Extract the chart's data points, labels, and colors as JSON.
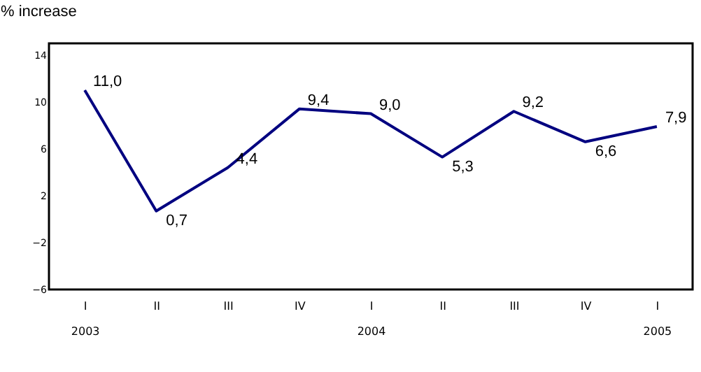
{
  "chart_data": {
    "type": "line",
    "ylabel": "% increase",
    "categories": [
      "I\n2003",
      "II",
      "III",
      "IV",
      "I\n2004",
      "II",
      "III",
      "IV",
      "I\n2005"
    ],
    "series": [
      {
        "color": "#000080",
        "values": [
          11.0,
          0.7,
          4.4,
          9.4,
          9.0,
          5.3,
          9.2,
          6.6,
          7.9
        ],
        "value_labels": [
          "11,0",
          "0,7",
          "4,4",
          "9,4",
          "9,0",
          "5,3",
          "9,2",
          "6,6",
          "7,9"
        ]
      }
    ],
    "ylim": [
      -6,
      15
    ],
    "yticks": [
      -6,
      -2,
      2,
      6,
      10,
      14
    ],
    "grid": false,
    "marker": "none",
    "line_style": "solid"
  }
}
